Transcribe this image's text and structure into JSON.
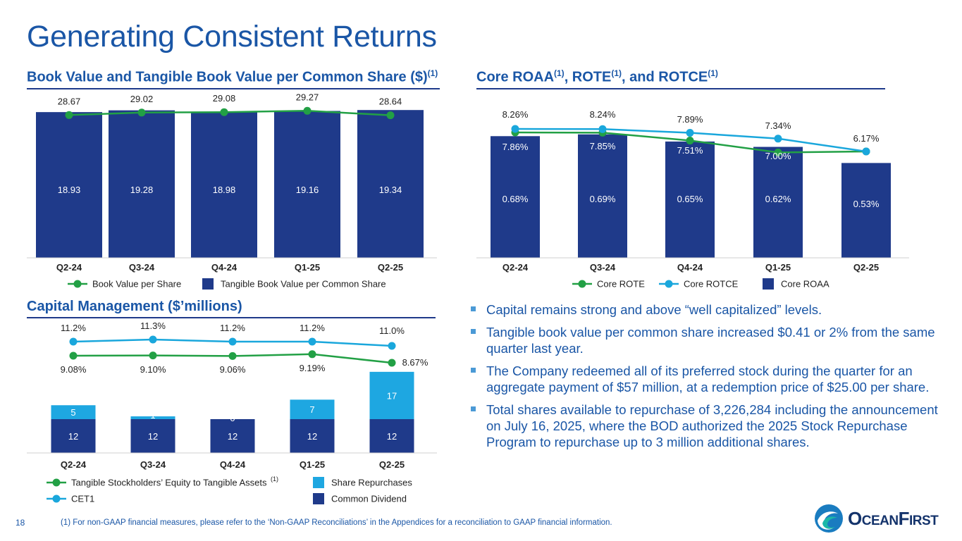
{
  "page": {
    "title": "Generating Consistent Returns",
    "page_number": "18",
    "footnote": "(1)  For non-GAAP financial measures, please refer to the ‘Non-GAAP Reconciliations’ in the Appendices for a reconciliation to GAAP financial information.",
    "logo_text": "OceanFirst",
    "logo_text_lead": "O",
    "logo_text_mid": "CEAN",
    "logo_text_tail": "F",
    "logo_text_end": "IRST"
  },
  "sections": {
    "book_value_title": "Book Value and Tangible Book Value per Common Share ($)",
    "book_value_title_sup": "(1)",
    "roaa_title_a": "Core ROAA",
    "roaa_title_b": ", ROTE",
    "roaa_title_c": ", and ROTCE",
    "roaa_sup": "(1)",
    "capital_title": "Capital Management ($’millions)"
  },
  "colors": {
    "navy": "#1f3a8a",
    "green": "#22a045",
    "cyan": "#1aa7dc",
    "light_blue": "#1ea7e1",
    "title_blue": "#1a56a6"
  },
  "chart_data": [
    {
      "id": "book_value",
      "type": "bar",
      "categories": [
        "Q2-24",
        "Q3-24",
        "Q4-24",
        "Q1-25",
        "Q2-25"
      ],
      "series": [
        {
          "name": "Book Value per Share",
          "kind": "line",
          "values": [
            28.67,
            29.02,
            29.08,
            29.27,
            28.64
          ],
          "labels": [
            "28.67",
            "29.02",
            "29.08",
            "29.27",
            "28.64"
          ]
        },
        {
          "name": "Tangible Book Value per Common Share",
          "kind": "bar",
          "values": [
            18.93,
            19.28,
            18.98,
            19.16,
            19.34
          ],
          "labels": [
            "18.93",
            "19.28",
            "18.98",
            "19.16",
            "19.34"
          ]
        }
      ],
      "legend": [
        "Book Value per Share",
        "Tangible Book Value per Common Share"
      ]
    },
    {
      "id": "core_returns",
      "type": "bar",
      "categories": [
        "Q2-24",
        "Q3-24",
        "Q4-24",
        "Q1-25",
        "Q2-25"
      ],
      "series": [
        {
          "name": "Core ROTE",
          "kind": "line",
          "values": [
            7.86,
            7.85,
            7.51,
            7.0,
            6.17
          ],
          "labels": [
            "7.86%",
            "7.85%",
            "7.51%",
            "7.00%",
            ""
          ]
        },
        {
          "name": "Core ROTCE",
          "kind": "line",
          "values": [
            8.26,
            8.24,
            7.89,
            7.34,
            6.17
          ],
          "labels": [
            "8.26%",
            "8.24%",
            "7.89%",
            "7.34%",
            "6.17%"
          ]
        },
        {
          "name": "Core ROAA",
          "kind": "bar",
          "values": [
            0.68,
            0.69,
            0.65,
            0.62,
            0.53
          ],
          "labels": [
            "0.68%",
            "0.69%",
            "0.65%",
            "0.62%",
            "0.53%"
          ]
        }
      ],
      "legend": [
        "Core ROTE",
        "Core ROTCE",
        "Core ROAA"
      ]
    },
    {
      "id": "capital_management",
      "type": "bar",
      "categories": [
        "Q2-24",
        "Q3-24",
        "Q4-24",
        "Q1-25",
        "Q2-25"
      ],
      "series": [
        {
          "name": "CET1",
          "kind": "line",
          "values": [
            11.2,
            11.3,
            11.2,
            11.2,
            11.0
          ],
          "labels": [
            "11.2%",
            "11.3%",
            "11.2%",
            "11.2%",
            "11.0%"
          ]
        },
        {
          "name": "Tangible Stockholders’ Equity to Tangible Assets",
          "kind": "line",
          "values": [
            9.08,
            9.1,
            9.06,
            9.19,
            8.67
          ],
          "labels": [
            "9.08%",
            "9.10%",
            "9.06%",
            "9.19%",
            "8.67%"
          ]
        },
        {
          "name": "Common Dividend",
          "kind": "stacked_bar",
          "values": [
            12,
            12,
            12,
            12,
            12
          ],
          "labels": [
            "12",
            "12",
            "12",
            "12",
            "12"
          ]
        },
        {
          "name": "Share Repurchases",
          "kind": "stacked_bar",
          "values": [
            5,
            1,
            0,
            7,
            17
          ],
          "labels": [
            "5",
            "1",
            "0",
            "7",
            "17"
          ]
        }
      ],
      "legend": [
        "Tangible Stockholders’ Equity to Tangible Assets",
        "Share Repurchases",
        "CET1",
        "Common Dividend"
      ],
      "legend_sup": "(1)"
    }
  ],
  "bullets": [
    "Capital remains strong and above “well capitalized” levels.",
    "Tangible book value per common share increased $0.41 or 2% from the same quarter last year.",
    "The Company redeemed all of its preferred stock during the quarter for an aggregate payment of $57 million, at a redemption price of $25.00 per share.",
    "Total shares available to repurchase of 3,226,284 including the announcement on July 16, 2025, where the BOD authorized the 2025 Stock Repurchase Program to repurchase up to 3 million additional shares."
  ]
}
